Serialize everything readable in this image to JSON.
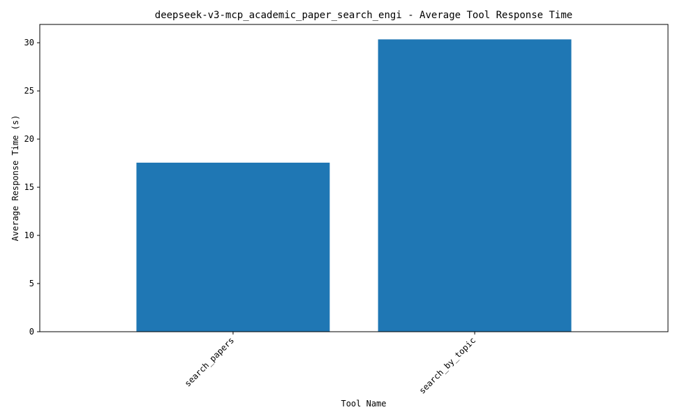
{
  "chart_data": {
    "type": "bar",
    "title": "deepseek-v3-mcp_academic_paper_search_engi - Average Tool Response Time",
    "xlabel": "Tool Name",
    "ylabel": "Average Response Time (s)",
    "categories": [
      "search_papers",
      "search_by_topic"
    ],
    "values": [
      17.55,
      30.35
    ],
    "ylim": [
      0,
      31.9
    ],
    "yticks": [
      0,
      5,
      10,
      15,
      20,
      25,
      30
    ],
    "grid": false,
    "legend": "none",
    "bar_color": "#1f77b4"
  }
}
